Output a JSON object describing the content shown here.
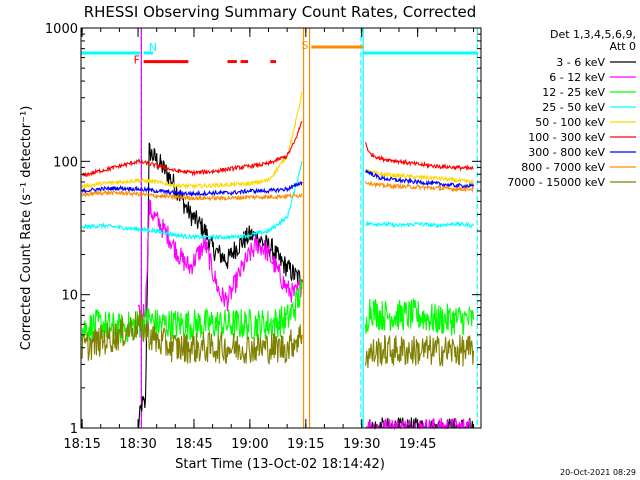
{
  "chart_data": {
    "type": "line",
    "title": "RHESSI Observing Summary Count Rates, Corrected",
    "xlabel": "Start Time (13-Oct-02 18:14:42)",
    "ylabel": "Corrected Count Rate (s⁻¹ detector⁻¹)",
    "x_ticks": [
      "18:15",
      "18:30",
      "18:45",
      "19:00",
      "19:15",
      "19:30",
      "19:45"
    ],
    "x_tick_minutes": [
      15,
      30,
      45,
      60,
      75,
      90,
      105
    ],
    "xlim_minutes": [
      14.7,
      122
    ],
    "y_scale": "log",
    "ylim": [
      1,
      1000
    ],
    "y_ticks": [
      "1",
      "10",
      "100",
      "1000"
    ],
    "y_tick_values": [
      1,
      10,
      100,
      1000
    ],
    "legend_header": [
      "Det 1,3,4,5,6,9,",
      "Att 0"
    ],
    "legend_position": "right",
    "data_gaps_minutes": [
      [
        74.5,
        90.4
      ]
    ],
    "series": [
      {
        "name": "3 - 6 keV",
        "color": "#000000",
        "x": [
          30,
          31,
          32,
          33,
          34,
          36,
          38,
          40,
          42,
          44,
          46,
          48,
          50,
          52,
          54,
          56,
          58,
          60,
          62,
          64,
          66,
          68,
          70,
          72,
          74,
          91,
          92,
          95,
          100,
          105,
          110,
          115,
          120
        ],
        "y": [
          1,
          1.5,
          1.5,
          120,
          110,
          95,
          80,
          65,
          50,
          40,
          35,
          30,
          22,
          20,
          18,
          22,
          25,
          28,
          27,
          24,
          22,
          18,
          16,
          14,
          13,
          1,
          1,
          1,
          1,
          1,
          1,
          1,
          1
        ]
      },
      {
        "name": "6 - 12 keV",
        "color": "#ff00ff",
        "x": [
          30,
          31,
          32,
          33,
          34,
          36,
          38,
          40,
          42,
          44,
          46,
          48,
          50,
          52,
          54,
          56,
          58,
          60,
          62,
          64,
          66,
          68,
          70,
          72,
          74,
          91,
          100,
          105,
          110,
          115,
          120
        ],
        "y": [
          7,
          7,
          8,
          45,
          40,
          33,
          28,
          22,
          18,
          16,
          20,
          24,
          15,
          10,
          9,
          12,
          16,
          20,
          24,
          22,
          18,
          14,
          11,
          10,
          12,
          1,
          1,
          1,
          1,
          1,
          1
        ]
      },
      {
        "name": "12 - 25 keV",
        "color": "#00ff00",
        "x": [
          15,
          20,
          25,
          30,
          33,
          35,
          40,
          45,
          50,
          55,
          60,
          65,
          70,
          72,
          74,
          91,
          92,
          95,
          100,
          105,
          110,
          115,
          120
        ],
        "y": [
          5.5,
          6,
          5.5,
          6,
          6.5,
          6,
          6,
          6,
          6,
          6,
          6,
          6,
          6.5,
          8,
          11,
          5,
          8,
          7,
          7,
          7,
          6.5,
          6.5,
          6.5
        ]
      },
      {
        "name": "25 - 50 keV",
        "color": "#00ffff",
        "x": [
          15,
          20,
          25,
          30,
          35,
          40,
          45,
          50,
          55,
          60,
          65,
          70,
          72,
          74,
          91,
          95,
          100,
          105,
          110,
          115,
          120
        ],
        "y": [
          32,
          33,
          32,
          31,
          30,
          28,
          27,
          27,
          27,
          28,
          30,
          38,
          60,
          100,
          34,
          34,
          33,
          34,
          33,
          34,
          33
        ]
      },
      {
        "name": "50 - 100 keV",
        "color": "#ffd700",
        "x": [
          15,
          20,
          25,
          30,
          35,
          40,
          45,
          50,
          55,
          60,
          65,
          70,
          72,
          74,
          91,
          95,
          100,
          105,
          110,
          115,
          120
        ],
        "y": [
          65,
          68,
          70,
          72,
          70,
          66,
          65,
          66,
          67,
          68,
          72,
          110,
          180,
          330,
          85,
          80,
          78,
          76,
          75,
          72,
          70
        ]
      },
      {
        "name": "100 - 300 keV",
        "color": "#ff0000",
        "x": [
          15,
          20,
          25,
          30,
          35,
          40,
          45,
          50,
          55,
          60,
          65,
          70,
          72,
          74,
          91,
          92,
          95,
          100,
          105,
          110,
          115,
          120
        ],
        "y": [
          78,
          85,
          92,
          100,
          93,
          85,
          82,
          84,
          88,
          92,
          96,
          110,
          140,
          200,
          140,
          115,
          105,
          100,
          95,
          92,
          90,
          88
        ]
      },
      {
        "name": "300 - 800 keV",
        "color": "#0000ff",
        "x": [
          15,
          20,
          25,
          30,
          35,
          40,
          45,
          50,
          55,
          60,
          65,
          70,
          72,
          74,
          91,
          95,
          100,
          105,
          110,
          115,
          120
        ],
        "y": [
          60,
          62,
          63,
          62,
          60,
          58,
          57,
          58,
          58,
          60,
          60,
          62,
          65,
          70,
          85,
          75,
          72,
          70,
          68,
          66,
          65
        ]
      },
      {
        "name": "800 - 7000 keV",
        "color": "#ff8c00",
        "x": [
          15,
          20,
          25,
          30,
          35,
          40,
          45,
          50,
          55,
          60,
          65,
          70,
          72,
          74,
          91,
          95,
          100,
          105,
          110,
          115,
          120
        ],
        "y": [
          56,
          58,
          58,
          57,
          55,
          54,
          53,
          53,
          53,
          54,
          54,
          55,
          55,
          56,
          70,
          66,
          65,
          64,
          63,
          62,
          62
        ]
      },
      {
        "name": "7000 - 15000 keV",
        "color": "#808000",
        "x": [
          15,
          20,
          25,
          30,
          35,
          40,
          45,
          50,
          55,
          60,
          65,
          70,
          72,
          74,
          91,
          95,
          100,
          105,
          110,
          115,
          120
        ],
        "y": [
          4,
          4.5,
          5,
          6,
          4.5,
          4,
          4,
          4,
          4,
          4,
          4,
          4,
          4.5,
          5,
          3.5,
          3.8,
          3.8,
          3.8,
          3.8,
          3.8,
          3.8
        ]
      }
    ],
    "flags": [
      {
        "label": "N",
        "color": "#00ffff",
        "level": 650,
        "spans_minutes": [
          [
            14.7,
            30.5
          ],
          [
            31.5,
            34
          ],
          [
            90.4,
            121
          ]
        ]
      },
      {
        "label": "F",
        "color": "#ff0000",
        "level": 560,
        "spans_minutes": [
          [
            31.5,
            43.5
          ],
          [
            54,
            56.5
          ],
          [
            57.5,
            59.5
          ],
          [
            65.5,
            67
          ]
        ]
      },
      {
        "label": "S",
        "color": "#ff8c00",
        "level": 720,
        "spans_minutes": [
          [
            76.5,
            90.4
          ]
        ]
      }
    ],
    "vertical_markers_minutes": [
      {
        "x": 30.8,
        "color": "#00ffff",
        "style": "dashed"
      },
      {
        "x": 89.8,
        "color": "#00ffff",
        "style": "dashed"
      },
      {
        "x": 121,
        "color": "#00ffff",
        "style": "dashed"
      },
      {
        "x": 30.9,
        "color": "#ff00ff",
        "style": "solid"
      },
      {
        "x": 74.4,
        "color": "#ff8c00",
        "style": "solid"
      },
      {
        "x": 76.0,
        "color": "#ff8c00",
        "style": "solid"
      },
      {
        "x": 90.4,
        "color": "#00ffff",
        "style": "solid"
      }
    ]
  },
  "footer": {
    "timestamp": "20-Oct-2021 08:29"
  }
}
